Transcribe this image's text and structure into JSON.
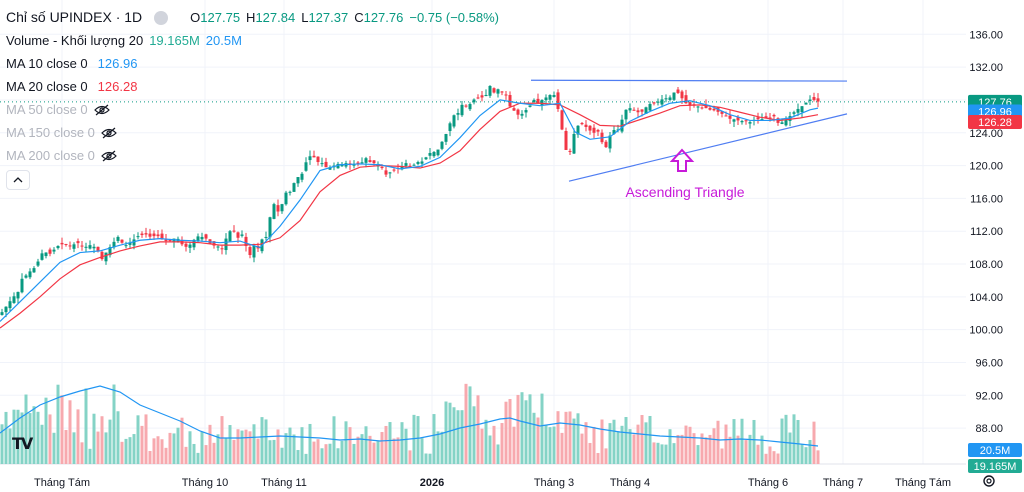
{
  "legend": {
    "symbol": "Chỉ số UPINDEX · 1D",
    "o_label": "O",
    "o": "127.75",
    "h_label": "H",
    "h": "127.84",
    "l_label": "L",
    "l": "127.37",
    "c_label": "C",
    "c": "127.76",
    "change": "−0.75 (−0.58%)",
    "volume_label": "Volume - Khối lượng 20",
    "volume_value": "19.165M",
    "volume_ma": "20.5M",
    "ma10_label": "MA 10 close 0",
    "ma10_value": "126.96",
    "ma20_label": "MA 20 close 0",
    "ma20_value": "126.28",
    "ma50_label": "MA 50 close 0",
    "ma150_label": "MA 150 close 0",
    "ma200_label": "MA 200 close 0"
  },
  "colors": {
    "up": "#089981",
    "down": "#f23645",
    "ma10": "#2196f3",
    "ma20": "#f23645",
    "trendline": "#4f7df2",
    "annotation": "#c71ad9",
    "vol_up": "#84d3c6",
    "vol_down": "#f7a9ae"
  },
  "annotation": {
    "text": "Ascending Triangle",
    "icon": "arrow-up-icon"
  },
  "price_badges": {
    "last": "127.76",
    "ma10": "126.96",
    "ma20": "126.28",
    "vol_ma": "20.5M",
    "vol": "19.165M"
  },
  "chart_data": {
    "type": "candlestick",
    "y_ticks": [
      "136.00",
      "132.00",
      "128.00",
      "124.00",
      "120.00",
      "116.00",
      "112.00",
      "108.00",
      "104.00",
      "100.00",
      "96.00",
      "92.00",
      "88.00"
    ],
    "ylim": [
      84.6,
      137.5
    ],
    "x_ticks": [
      "Tháng Tám",
      "Tháng 10",
      "Tháng 11",
      "2026",
      "Tháng 3",
      "Tháng 4",
      "Tháng 6",
      "Tháng 7",
      "Tháng Tám"
    ],
    "grid": true,
    "price_path": [
      [
        0,
        101.8
      ],
      [
        6,
        102.8
      ],
      [
        12,
        103.8
      ],
      [
        18,
        104.6
      ],
      [
        22,
        106.2
      ],
      [
        28,
        106.8
      ],
      [
        32,
        107.4
      ],
      [
        36,
        107.6
      ],
      [
        40,
        109.0
      ],
      [
        44,
        109.6
      ],
      [
        48,
        109.2
      ],
      [
        52,
        109.3
      ],
      [
        56,
        110.2
      ],
      [
        60,
        110.2
      ],
      [
        64,
        110.6
      ],
      [
        68,
        110.1
      ],
      [
        72,
        110.4
      ],
      [
        76,
        110.4
      ],
      [
        80,
        110.7
      ],
      [
        84,
        109.8
      ],
      [
        88,
        110.4
      ],
      [
        92,
        110.2
      ],
      [
        96,
        110.0
      ],
      [
        98,
        109.6
      ],
      [
        102,
        108.6
      ],
      [
        106,
        109.4
      ],
      [
        112,
        110.4
      ],
      [
        118,
        111.3
      ],
      [
        122,
        110.6
      ],
      [
        126,
        110.3
      ],
      [
        132,
        110.7
      ],
      [
        136,
        111.3
      ],
      [
        140,
        111.5
      ],
      [
        146,
        111.6
      ],
      [
        152,
        111.2
      ],
      [
        156,
        111.6
      ],
      [
        162,
        111.0
      ],
      [
        166,
        110.8
      ],
      [
        172,
        110.8
      ],
      [
        176,
        111.4
      ],
      [
        182,
        110.4
      ],
      [
        186,
        110.1
      ],
      [
        192,
        110.5
      ],
      [
        196,
        111.4
      ],
      [
        202,
        111.3
      ],
      [
        206,
        111.1
      ],
      [
        212,
        110.2
      ],
      [
        216,
        110.3
      ],
      [
        222,
        109.8
      ],
      [
        226,
        111.1
      ],
      [
        230,
        112.0
      ],
      [
        234,
        112.0
      ],
      [
        238,
        111.2
      ],
      [
        242,
        111.6
      ],
      [
        246,
        110.2
      ],
      [
        250,
        109.1
      ],
      [
        254,
        110.2
      ],
      [
        258,
        109.9
      ],
      [
        262,
        111.0
      ],
      [
        266,
        111.3
      ],
      [
        270,
        113.7
      ],
      [
        274,
        115.3
      ],
      [
        278,
        114.4
      ],
      [
        282,
        115.3
      ],
      [
        286,
        116.7
      ],
      [
        290,
        116.8
      ],
      [
        296,
        118.4
      ],
      [
        302,
        119.0
      ],
      [
        306,
        120.4
      ],
      [
        312,
        121.5
      ],
      [
        316,
        120.5
      ],
      [
        322,
        120.3
      ],
      [
        326,
        119.8
      ],
      [
        332,
        119.8
      ],
      [
        336,
        120.2
      ],
      [
        342,
        120.2
      ],
      [
        346,
        120.3
      ],
      [
        352,
        120.0
      ],
      [
        356,
        120.3
      ],
      [
        362,
        120.4
      ],
      [
        366,
        120.9
      ],
      [
        372,
        120.2
      ],
      [
        376,
        120.4
      ],
      [
        382,
        119.8
      ],
      [
        386,
        118.9
      ],
      [
        392,
        119.3
      ],
      [
        396,
        119.5
      ],
      [
        402,
        119.9
      ],
      [
        406,
        120.3
      ],
      [
        412,
        119.8
      ],
      [
        416,
        120.4
      ],
      [
        422,
        120.5
      ],
      [
        426,
        121.0
      ],
      [
        432,
        121.8
      ],
      [
        436,
        121.5
      ],
      [
        440,
        122.4
      ],
      [
        444,
        123.4
      ],
      [
        448,
        124.3
      ],
      [
        452,
        126.0
      ],
      [
        458,
        126.4
      ],
      [
        462,
        127.4
      ],
      [
        468,
        127.2
      ],
      [
        472,
        127.8
      ],
      [
        476,
        128.3
      ],
      [
        482,
        128.3
      ],
      [
        486,
        128.6
      ],
      [
        490,
        129.7
      ],
      [
        494,
        128.9
      ],
      [
        498,
        129.3
      ],
      [
        502,
        129.0
      ],
      [
        506,
        128.6
      ],
      [
        510,
        127.2
      ],
      [
        514,
        126.7
      ],
      [
        518,
        126.2
      ],
      [
        522,
        126.3
      ],
      [
        528,
        127.0
      ],
      [
        534,
        128.0
      ],
      [
        538,
        127.6
      ],
      [
        544,
        128.2
      ],
      [
        548,
        128.4
      ],
      [
        552,
        128.8
      ],
      [
        556,
        128.4
      ],
      [
        560,
        125.4
      ],
      [
        564,
        123.4
      ],
      [
        568,
        120.4
      ],
      [
        572,
        123.1
      ],
      [
        576,
        124.6
      ],
      [
        580,
        125.1
      ],
      [
        584,
        125.0
      ],
      [
        588,
        124.4
      ],
      [
        594,
        124.0
      ],
      [
        600,
        124.2
      ],
      [
        604,
        121.5
      ],
      [
        608,
        123.0
      ],
      [
        612,
        124.3
      ],
      [
        618,
        124.4
      ],
      [
        622,
        125.6
      ],
      [
        626,
        126.8
      ],
      [
        630,
        127.0
      ],
      [
        636,
        126.7
      ],
      [
        640,
        126.3
      ],
      [
        646,
        127.1
      ],
      [
        650,
        127.5
      ],
      [
        656,
        127.6
      ],
      [
        660,
        128.0
      ],
      [
        666,
        128.2
      ],
      [
        670,
        128.3
      ],
      [
        676,
        129.2
      ],
      [
        680,
        128.5
      ],
      [
        686,
        127.6
      ],
      [
        690,
        127.3
      ],
      [
        696,
        127.3
      ],
      [
        700,
        127.1
      ],
      [
        706,
        127.0
      ],
      [
        710,
        126.8
      ],
      [
        716,
        126.7
      ],
      [
        720,
        126.4
      ],
      [
        726,
        126.1
      ],
      [
        730,
        125.7
      ],
      [
        736,
        125.6
      ],
      [
        740,
        125.4
      ],
      [
        746,
        125.5
      ],
      [
        750,
        125.3
      ],
      [
        756,
        125.7
      ],
      [
        760,
        125.6
      ],
      [
        766,
        125.8
      ],
      [
        770,
        125.8
      ],
      [
        774,
        126.0
      ],
      [
        778,
        125.2
      ],
      [
        784,
        125.3
      ],
      [
        788,
        125.8
      ],
      [
        794,
        126.5
      ],
      [
        798,
        126.9
      ],
      [
        804,
        127.4
      ],
      [
        808,
        127.9
      ],
      [
        812,
        128.2
      ],
      [
        816,
        127.8
      ]
    ],
    "ma10_path": [
      [
        0,
        101.0
      ],
      [
        20,
        103.4
      ],
      [
        40,
        105.8
      ],
      [
        60,
        108.2
      ],
      [
        80,
        109.4
      ],
      [
        100,
        109.6
      ],
      [
        120,
        110.3
      ],
      [
        140,
        110.9
      ],
      [
        160,
        111.1
      ],
      [
        180,
        110.9
      ],
      [
        200,
        110.8
      ],
      [
        220,
        110.6
      ],
      [
        240,
        110.8
      ],
      [
        260,
        110.0
      ],
      [
        280,
        112.6
      ],
      [
        300,
        115.8
      ],
      [
        320,
        119.4
      ],
      [
        340,
        120.1
      ],
      [
        360,
        120.2
      ],
      [
        380,
        120.1
      ],
      [
        400,
        119.6
      ],
      [
        420,
        119.9
      ],
      [
        440,
        121.0
      ],
      [
        460,
        123.4
      ],
      [
        480,
        126.1
      ],
      [
        500,
        128.0
      ],
      [
        520,
        127.6
      ],
      [
        540,
        127.3
      ],
      [
        560,
        127.6
      ],
      [
        575,
        124.1
      ],
      [
        590,
        123.2
      ],
      [
        610,
        123.5
      ],
      [
        630,
        125.4
      ],
      [
        650,
        126.6
      ],
      [
        670,
        127.6
      ],
      [
        690,
        127.9
      ],
      [
        710,
        127.3
      ],
      [
        730,
        126.2
      ],
      [
        750,
        125.5
      ],
      [
        770,
        125.5
      ],
      [
        790,
        125.8
      ],
      [
        810,
        126.8
      ],
      [
        818,
        127.0
      ]
    ],
    "ma20_path": [
      [
        0,
        100.2
      ],
      [
        20,
        102.0
      ],
      [
        40,
        104.0
      ],
      [
        60,
        106.2
      ],
      [
        80,
        107.9
      ],
      [
        100,
        108.8
      ],
      [
        120,
        109.6
      ],
      [
        140,
        110.2
      ],
      [
        160,
        110.7
      ],
      [
        180,
        110.7
      ],
      [
        200,
        110.6
      ],
      [
        220,
        110.3
      ],
      [
        240,
        110.3
      ],
      [
        260,
        110.4
      ],
      [
        280,
        111.2
      ],
      [
        300,
        113.3
      ],
      [
        320,
        116.8
      ],
      [
        340,
        118.8
      ],
      [
        360,
        119.8
      ],
      [
        380,
        120.0
      ],
      [
        400,
        119.9
      ],
      [
        420,
        119.7
      ],
      [
        440,
        120.3
      ],
      [
        460,
        121.8
      ],
      [
        480,
        124.4
      ],
      [
        500,
        126.6
      ],
      [
        520,
        127.6
      ],
      [
        540,
        127.6
      ],
      [
        560,
        127.4
      ],
      [
        580,
        126.2
      ],
      [
        600,
        124.9
      ],
      [
        620,
        124.8
      ],
      [
        640,
        125.6
      ],
      [
        660,
        126.4
      ],
      [
        680,
        127.3
      ],
      [
        700,
        127.4
      ],
      [
        720,
        127.1
      ],
      [
        740,
        126.5
      ],
      [
        760,
        125.9
      ],
      [
        780,
        125.5
      ],
      [
        800,
        125.8
      ],
      [
        818,
        126.2
      ]
    ],
    "volume_ma_path": [
      [
        0,
        433
      ],
      [
        20,
        418
      ],
      [
        40,
        405
      ],
      [
        60,
        397
      ],
      [
        80,
        391
      ],
      [
        100,
        386
      ],
      [
        120,
        392
      ],
      [
        140,
        405
      ],
      [
        160,
        413
      ],
      [
        180,
        421
      ],
      [
        200,
        431
      ],
      [
        220,
        438
      ],
      [
        240,
        438
      ],
      [
        260,
        437
      ],
      [
        280,
        436
      ],
      [
        300,
        437
      ],
      [
        320,
        438
      ],
      [
        340,
        440
      ],
      [
        360,
        439
      ],
      [
        380,
        441
      ],
      [
        400,
        440
      ],
      [
        420,
        438
      ],
      [
        440,
        434
      ],
      [
        460,
        428
      ],
      [
        480,
        424
      ],
      [
        500,
        419
      ],
      [
        510,
        418
      ],
      [
        520,
        421
      ],
      [
        540,
        426
      ],
      [
        560,
        423
      ],
      [
        580,
        425
      ],
      [
        600,
        429
      ],
      [
        620,
        432
      ],
      [
        640,
        434
      ],
      [
        660,
        436
      ],
      [
        680,
        437
      ],
      [
        700,
        438
      ],
      [
        720,
        440
      ],
      [
        740,
        439
      ],
      [
        760,
        440
      ],
      [
        780,
        442
      ],
      [
        800,
        444
      ],
      [
        818,
        446
      ]
    ],
    "trendlines": [
      {
        "from": [
          531,
          130.4
        ],
        "to": [
          847,
          130.3
        ]
      },
      {
        "from": [
          569,
          118.1
        ],
        "to": [
          847,
          126.3
        ]
      }
    ],
    "last_close": 127.76,
    "ma10_last": 126.96,
    "ma20_last": 126.28
  }
}
